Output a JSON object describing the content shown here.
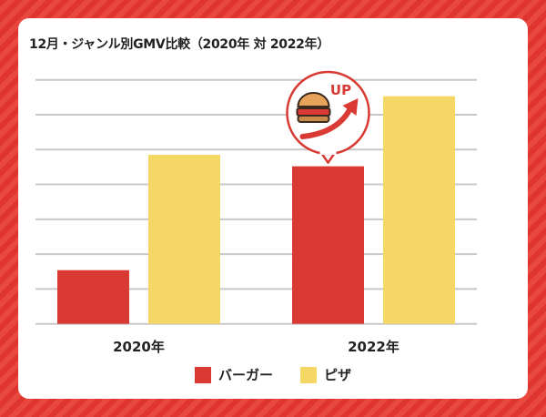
{
  "chart_data": {
    "type": "bar",
    "title": "12月・ジャンル別GMV比較（2020年 対 2022年）",
    "categories": [
      "2020年",
      "2022年"
    ],
    "series": [
      {
        "name": "バーガー",
        "color": "#d93a33",
        "values": [
          1.54,
          4.52
        ]
      },
      {
        "name": "ピザ",
        "color": "#f5d766",
        "values": [
          4.85,
          6.53
        ]
      }
    ],
    "ylim": [
      0,
      7
    ],
    "grid": true,
    "y_tick_labels": false,
    "legend_position": "bottom",
    "annotation": {
      "text": "UP",
      "icon": "burger-icon",
      "target": "バーガー 2022年"
    }
  }
}
